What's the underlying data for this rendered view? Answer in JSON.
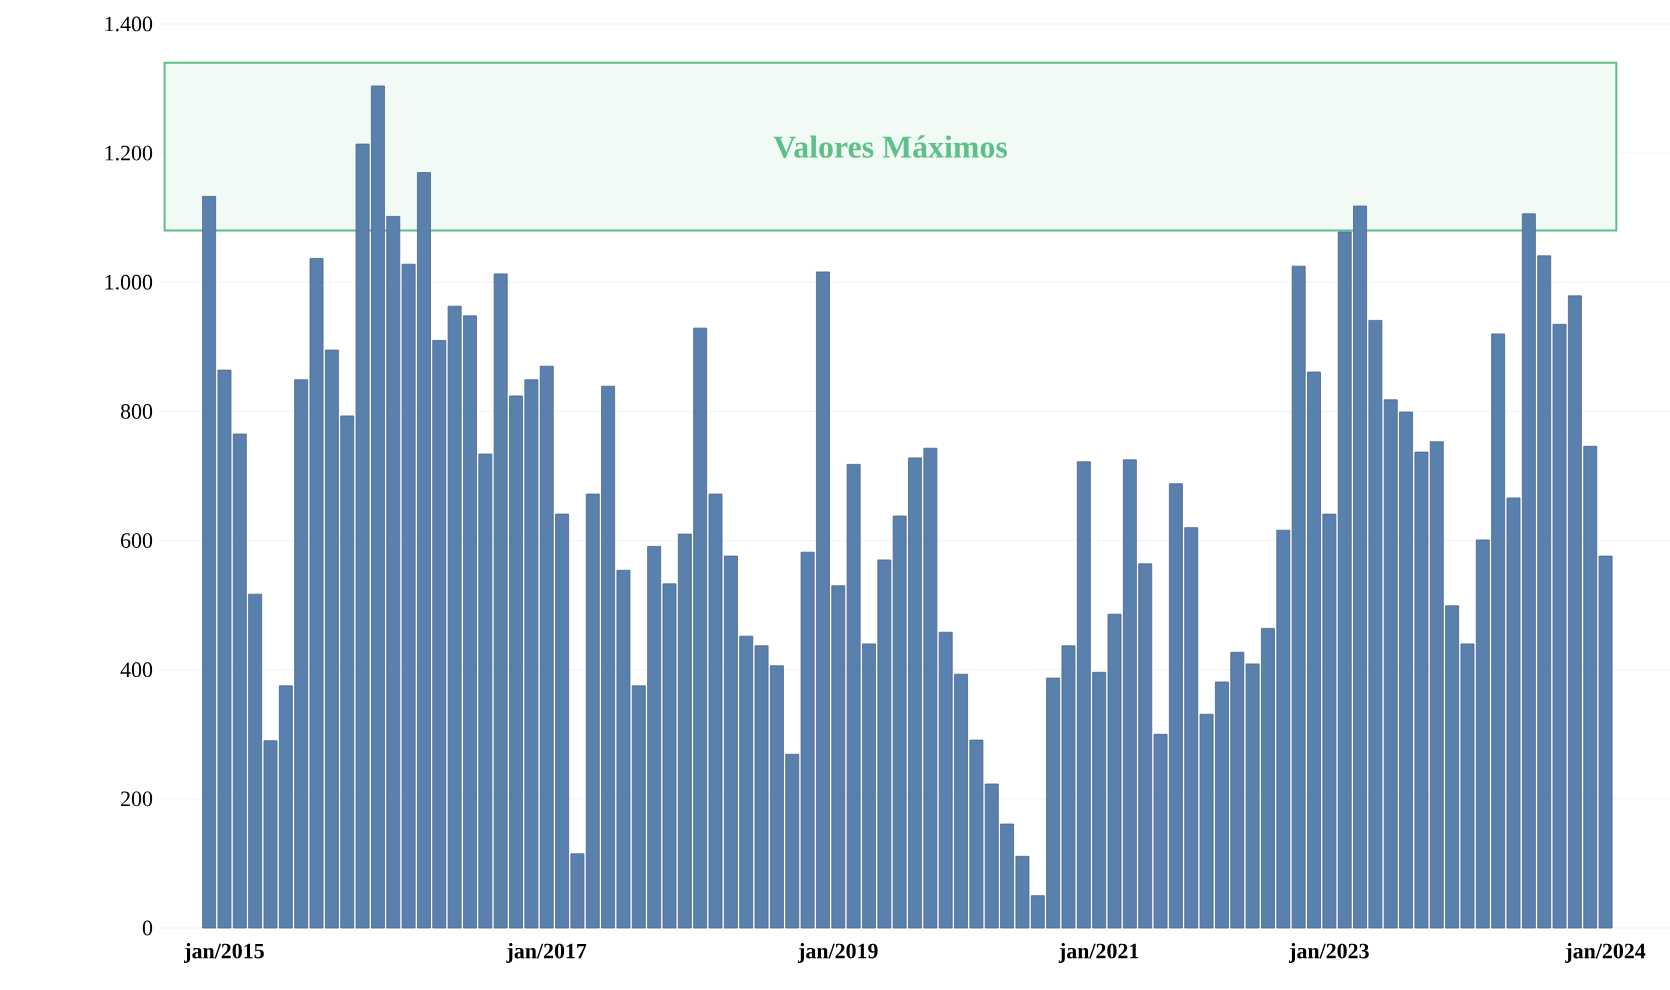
{
  "chart_data": {
    "type": "bar",
    "color": "#5a80ad",
    "categories": [
      null,
      "jan/2015",
      null,
      null,
      null,
      null,
      null,
      null,
      null,
      null,
      null,
      null,
      null,
      null,
      null,
      null,
      null,
      null,
      null,
      null,
      null,
      null,
      "jan/2017",
      null,
      null,
      null,
      null,
      null,
      null,
      null,
      null,
      null,
      null,
      null,
      null,
      null,
      null,
      null,
      null,
      null,
      null,
      "jan/2019",
      null,
      null,
      null,
      null,
      null,
      null,
      null,
      null,
      null,
      null,
      null,
      null,
      null,
      null,
      null,
      null,
      "jan/2021",
      null,
      null,
      null,
      null,
      null,
      null,
      null,
      null,
      null,
      null,
      null,
      null,
      null,
      null,
      "jan/2023",
      null,
      null,
      null,
      null,
      null,
      null,
      null,
      null,
      null,
      null,
      null,
      null,
      null,
      null,
      null,
      null,
      null,
      "jan/2024"
    ],
    "values": [
      1133,
      864,
      765,
      517,
      290,
      375,
      849,
      1037,
      895,
      793,
      1214,
      1304,
      1102,
      1028,
      1170,
      910,
      963,
      948,
      734,
      1013,
      824,
      849,
      870,
      641,
      115,
      672,
      839,
      554,
      375,
      591,
      533,
      610,
      929,
      672,
      576,
      452,
      437,
      406,
      269,
      582,
      1016,
      530,
      718,
      440,
      570,
      638,
      728,
      743,
      458,
      393,
      291,
      223,
      161,
      111,
      50,
      387,
      437,
      722,
      396,
      486,
      725,
      564,
      300,
      688,
      620,
      331,
      381,
      427,
      409,
      464,
      616,
      1025,
      861,
      641,
      1078,
      1118,
      941,
      818,
      799,
      737,
      753,
      499,
      440,
      601,
      920,
      666,
      1106,
      1041,
      935,
      979,
      746,
      576
    ],
    "ylim": [
      0,
      1400
    ],
    "yticks": [
      0,
      200,
      400,
      600,
      800,
      {
        "value": 1000,
        "label": "1.000"
      },
      {
        "value": 1200,
        "label": "1.200"
      },
      {
        "value": 1400,
        "label": "1.400"
      }
    ],
    "grid": "y",
    "bands": [
      {
        "axis": "y",
        "from": 1080,
        "to": 1340,
        "label": "Valores Máximos",
        "color": "#5cc088"
      }
    ]
  }
}
